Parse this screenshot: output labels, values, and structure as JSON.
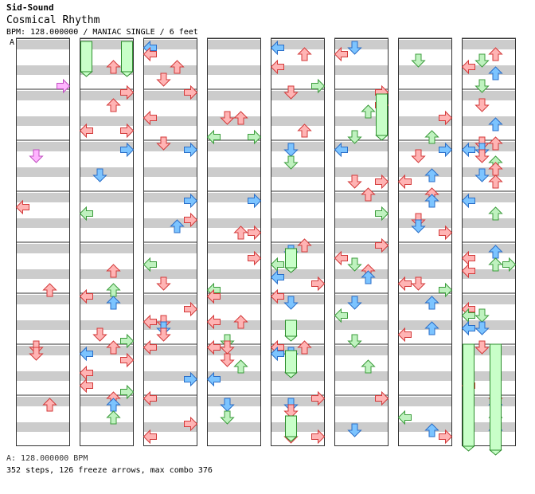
{
  "song": {
    "artist": "Sid-Sound",
    "title": "Cosmical Rhythm",
    "info": "BPM: 128.000000 / MANIAC SINGLE / 6 feet"
  },
  "segment_label": "A",
  "footer": {
    "bpm": "A: 128.000000 BPM",
    "stats": "352 steps, 126 freeze arrows, max combo 376"
  },
  "colors": {
    "stripe": "#cccccc",
    "border": "#333333",
    "red_fill": "#ffb4b4",
    "red_stroke": "#d33a3a",
    "blue_fill": "#7cc4ff",
    "blue_stroke": "#2a6ec8",
    "green_fill": "#bff2bf",
    "green_stroke": "#3c9c3c",
    "pink_fill": "#ffb4ff",
    "pink_stroke": "#c050c0",
    "freeze_fill": "#c8ffc8",
    "freeze_stroke": "#2c8c2c"
  },
  "icons": [
    "left-arrow-icon",
    "down-arrow-icon",
    "up-arrow-icon",
    "right-arrow-icon"
  ]
}
